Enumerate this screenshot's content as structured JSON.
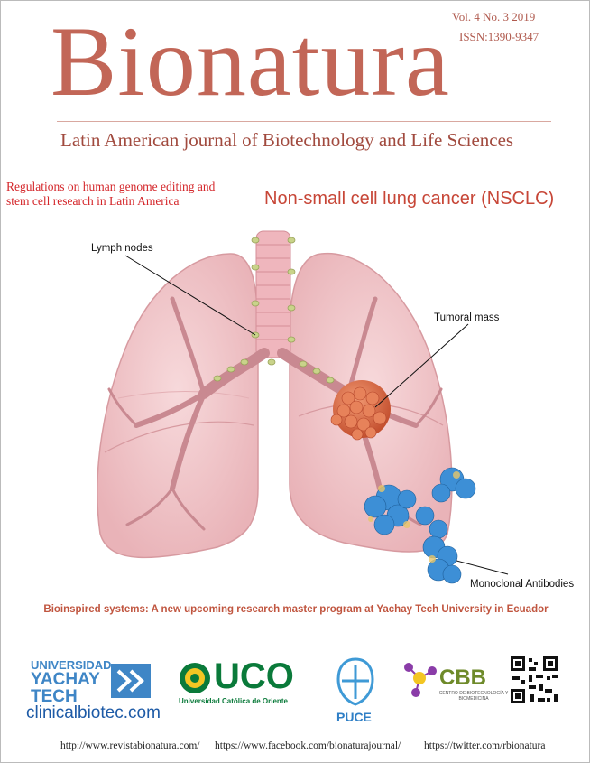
{
  "header": {
    "issue": "Vol. 4   No. 3  2019",
    "issn": "ISSN:1390-9347",
    "title": "Bionatura",
    "subtitle": "Latin American journal of Biotechnology and Life Sciences"
  },
  "leads": {
    "left": "Regulations on human genome editing and stem cell research in Latin America",
    "right": "Non-small cell lung cancer (NSCLC)"
  },
  "illustration": {
    "labels": {
      "lymph": "Lymph nodes",
      "tumor": "Tumoral mass",
      "antibodies": "Monoclonal Antibodies"
    }
  },
  "banner": "Bioinspired systems: A new upcoming research master program at Yachay Tech University in Ecuador",
  "logos": {
    "yachay_line1": "UNIVERSIDAD",
    "yachay_line2": "YACHAY",
    "yachay_line3": "TECH",
    "website": "clinicalbiotec.com",
    "uco": "UCO",
    "uco_sub": "Universidad Católica de Oriente",
    "puce": "PUCE",
    "cbb": "CBB",
    "cbb_sub": "CENTRO DE BIOTECNOLOGÍA Y BIOMEDICINA"
  },
  "footer": {
    "link1": "http://www.revistabionatura.com/",
    "link2": "https://www.facebook.com/bionaturajournal/",
    "link3": "https://twitter.com/rbionatura"
  },
  "colors": {
    "title": "#c26657",
    "lead_red": "#d4262a",
    "lung": "#f2c9cc",
    "tumor": "#e0704e",
    "antibody": "#3d8fd6"
  }
}
